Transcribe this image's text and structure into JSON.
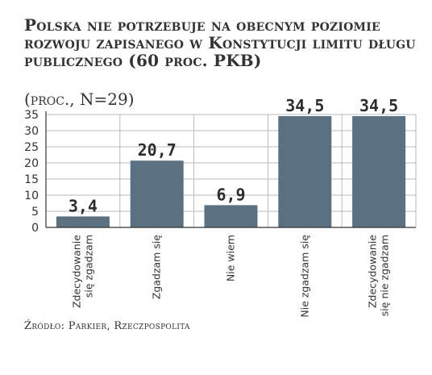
{
  "chart_data": {
    "type": "bar",
    "title": "Polska nie potrzebuje na obecnym poziomie rozwoju zapisanego w Konstytucji limitu długu publicznego (60 proc. PKB)",
    "subtitle": "(proc., N=29)",
    "categories": [
      [
        "Zdecydowanie",
        "się zgadzam"
      ],
      [
        "Zgadzam się"
      ],
      [
        "Nie wiem"
      ],
      [
        "Nie zgadzam się"
      ],
      [
        "Zdecydowanie",
        "się nie zgadzam"
      ]
    ],
    "values": [
      3.4,
      20.7,
      6.9,
      34.5,
      34.5
    ],
    "value_labels": [
      "3,4",
      "20,7",
      "6,9",
      "34,5",
      "34,5"
    ],
    "yticks": [
      "0",
      "5",
      "10",
      "15",
      "20",
      "25",
      "30",
      "35"
    ],
    "ylim": [
      0,
      35
    ],
    "grid": true,
    "bar_color": "#5a7184",
    "grid_color": "#b8b8b8",
    "axis_color": "#333333"
  },
  "source": "Źródło: Parkier, Rzeczpospolita"
}
